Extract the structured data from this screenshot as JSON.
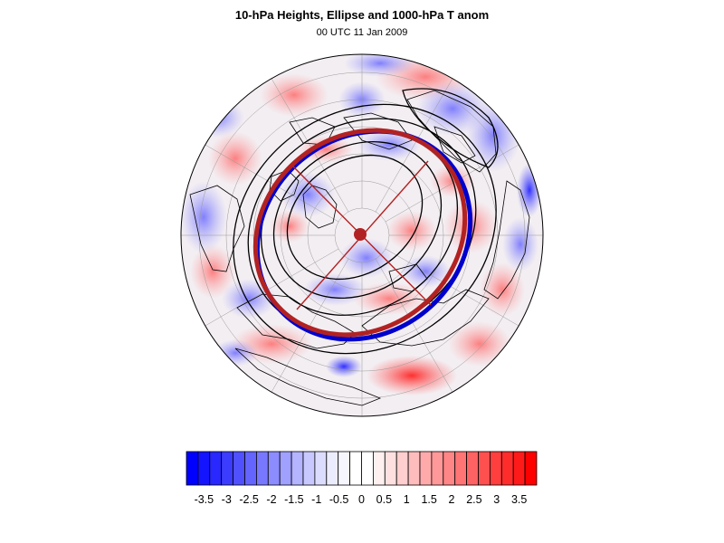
{
  "title": "10-hPa Heights, Ellipse and 1000-hPa T anom",
  "subtitle": "00 UTC 11 Jan 2009",
  "colors": {
    "ellipse_outline": "#0000cc",
    "ellipse_fill_stroke": "#b22222",
    "center_marker": "#b22222",
    "contour": "#000000",
    "coastline": "#000000",
    "graticule": "#999999"
  },
  "colorbar": {
    "tick_labels": [
      "-3.5",
      "-3",
      "-2.5",
      "-2",
      "-1.5",
      "-1",
      "-0.5",
      "0",
      "0.5",
      "1",
      "1.5",
      "2",
      "2.5",
      "3",
      "3.5"
    ],
    "colors": [
      "#0000ff",
      "#1414ff",
      "#2828ff",
      "#3c3cff",
      "#5050ff",
      "#6464ff",
      "#7878ff",
      "#8c8cff",
      "#a0a0ff",
      "#b4b4ff",
      "#c8c8ff",
      "#dcdcff",
      "#ececff",
      "#f6f6ff",
      "#ffffff",
      "#ffffff",
      "#fff0f0",
      "#ffe0e0",
      "#ffcece",
      "#ffbcbc",
      "#ffaaaa",
      "#ff9898",
      "#ff8686",
      "#ff7474",
      "#ff6262",
      "#ff5050",
      "#ff3e3e",
      "#ff2c2c",
      "#ff1a1a",
      "#ff0000"
    ]
  }
}
